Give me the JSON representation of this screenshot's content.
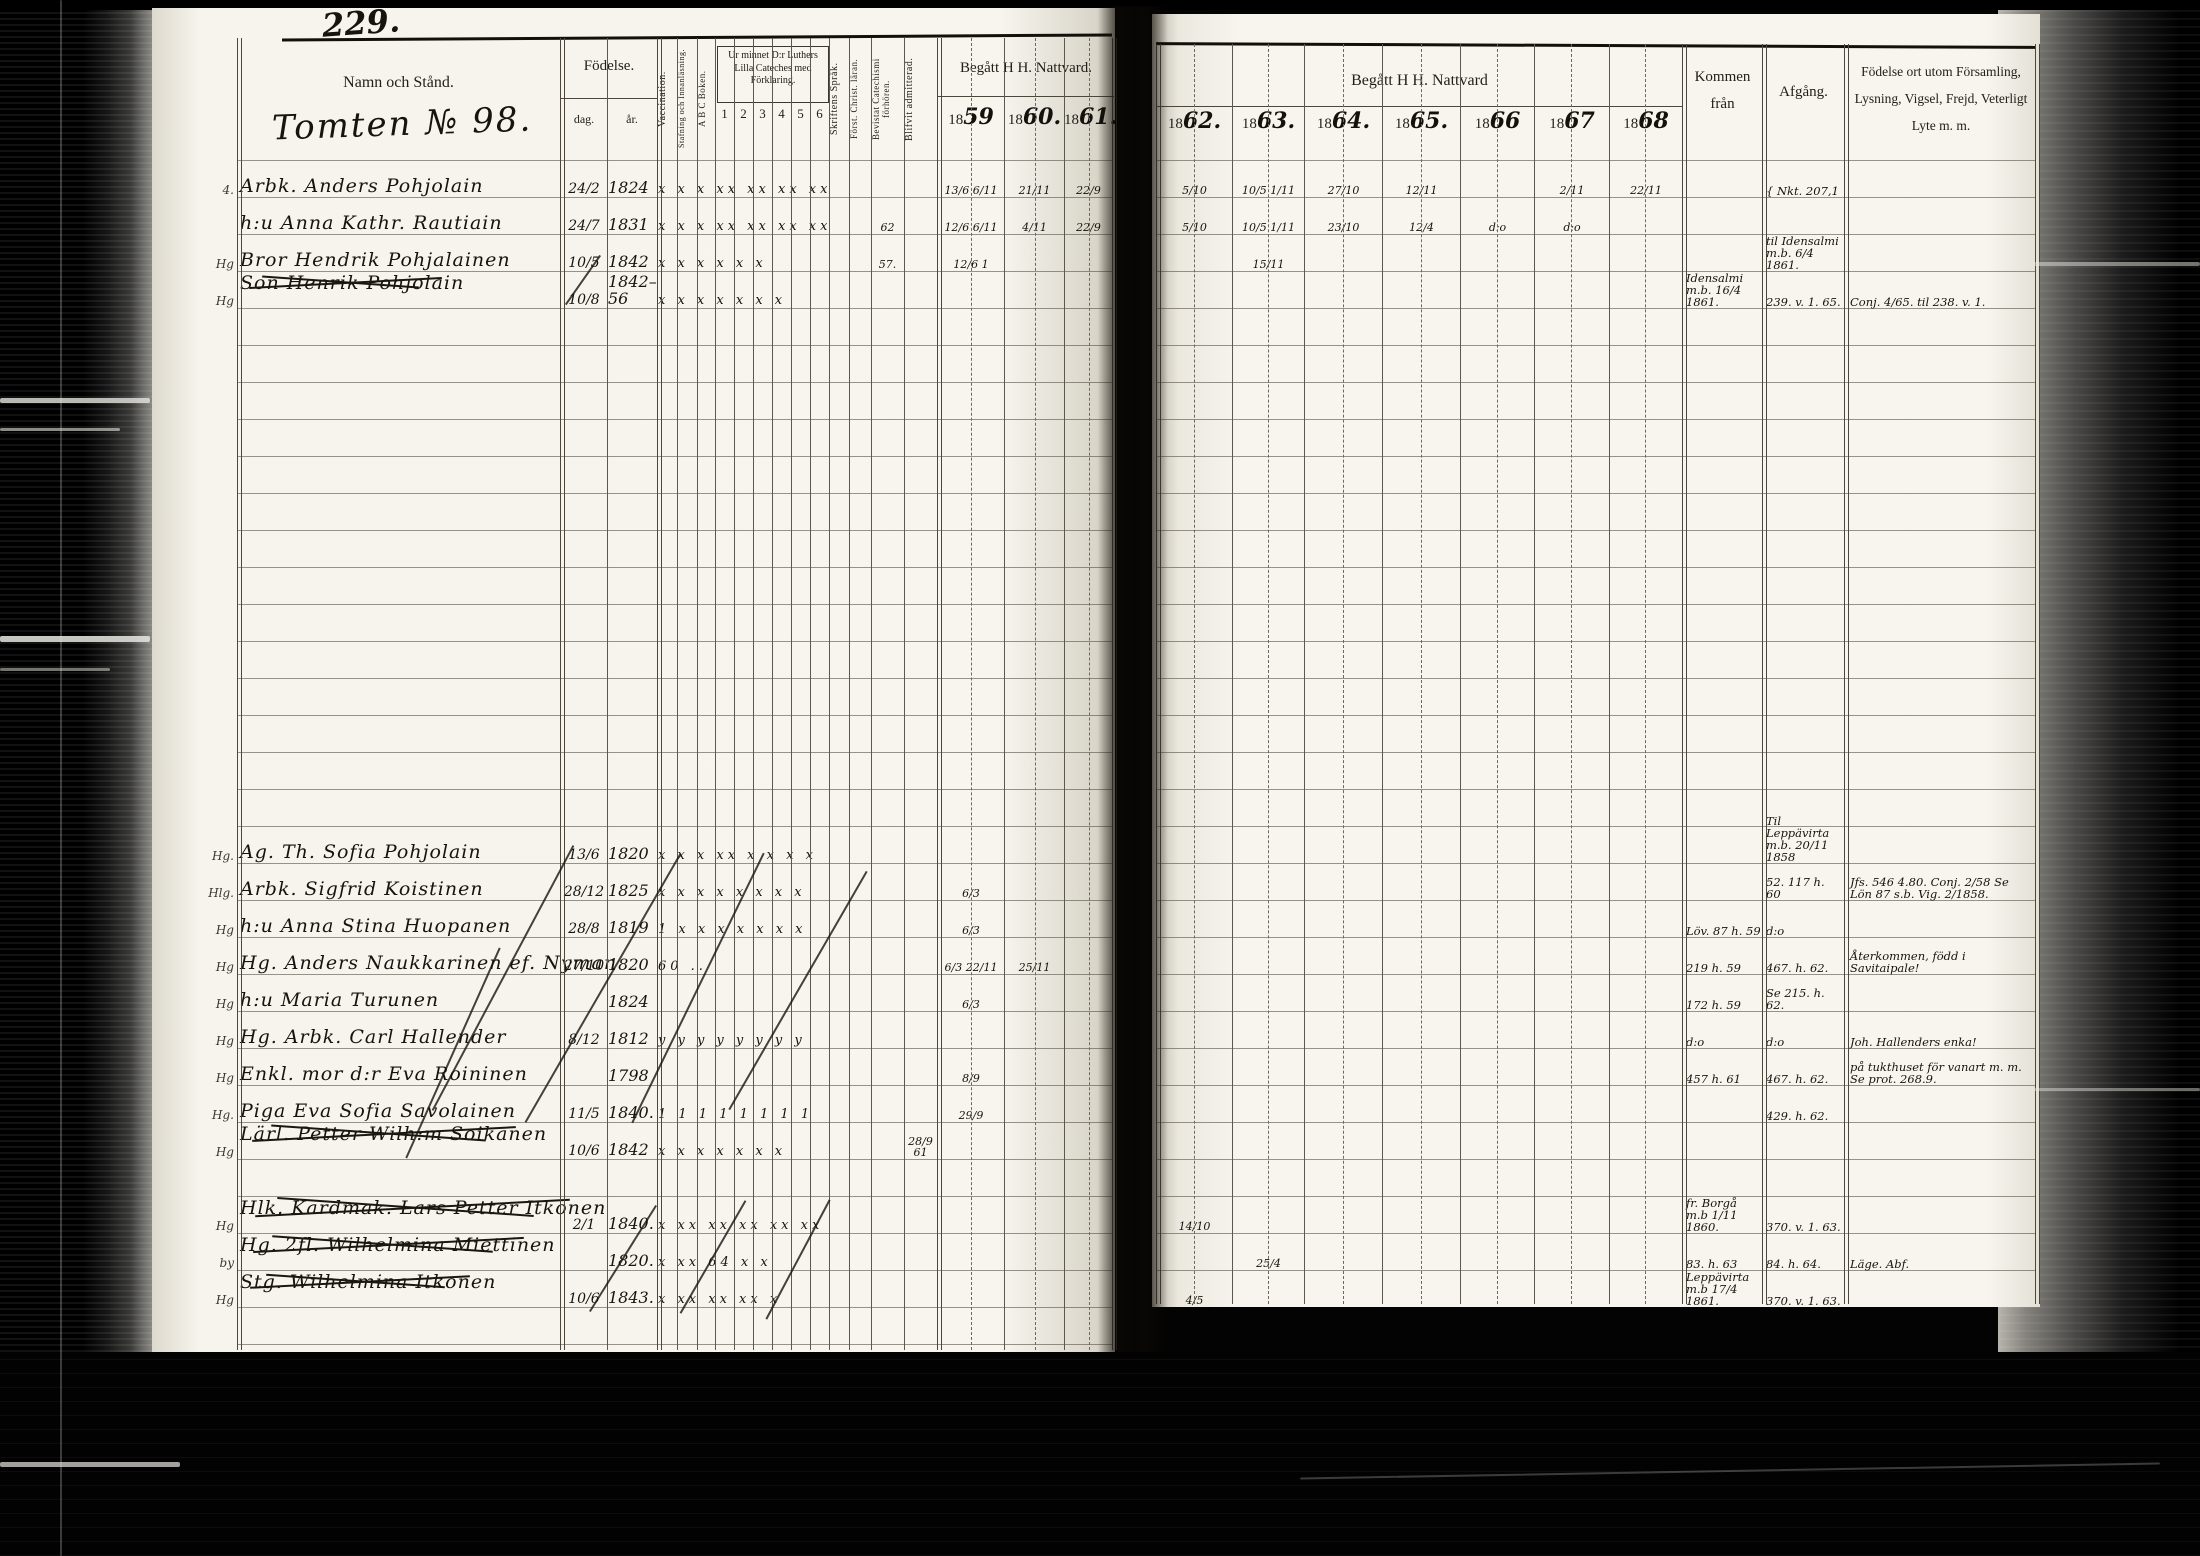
{
  "film": {
    "page_number": "229."
  },
  "left_page": {
    "title_handwritten": "Tomten № 98.",
    "headers": {
      "name": "Namn och Stånd.",
      "birth": "Födelse.",
      "birth_day": "dag.",
      "birth_year": "år.",
      "vaccination": "Vaccination.",
      "spelling": "Stafning och Innanläsning.",
      "abc": "A B C Boken.",
      "catechism_group": "Ur minnet D:r Luthers Lilla Cateches med Förklaring.",
      "catechism_cols": [
        "1",
        "2",
        "3",
        "4",
        "5",
        "6"
      ],
      "scripture": "Skriftens Språk.",
      "doctrine": "Först. Christ. läran.",
      "exams": "Bevistat Catechismi förhören.",
      "admitted": "Blifvit admitterad.",
      "communion_group": "Begått H H. Nattvard.",
      "years": [
        {
          "printed": "18",
          "script": "59"
        },
        {
          "printed": "18",
          "script": "60."
        },
        {
          "printed": "18",
          "script": "61."
        }
      ]
    }
  },
  "right_page": {
    "headers": {
      "communion_group": "Begått H H. Nattvard",
      "years": [
        {
          "printed": "18",
          "script": "62."
        },
        {
          "printed": "18",
          "script": "63."
        },
        {
          "printed": "18",
          "script": "64."
        },
        {
          "printed": "18",
          "script": "65."
        },
        {
          "printed": "18",
          "script": "66"
        },
        {
          "printed": "18",
          "script": "67"
        },
        {
          "printed": "18",
          "script": "68"
        }
      ],
      "come_from": "Kommen från",
      "departure": "Afgång.",
      "notes": "Födelse ort utom Församling, Lysning, Vigsel, Frejd, Veterligt Lyte m. m."
    }
  },
  "rows": [
    {
      "margin": "4.",
      "name": "Arbk. Anders Pohjolain",
      "struck": false,
      "dag": "24/2",
      "ar": "1824",
      "marks": "x x x xx xx xx xx xx",
      "exam": "",
      "admit": "",
      "y1859": "13/6 6/11",
      "y1860": "21/11",
      "y1861": "22/9",
      "y1862": "5/10",
      "y1863": "10/5 1/11",
      "y1864": "27/10",
      "y1865": "12/11",
      "y1866": "",
      "y1867": "2/11",
      "y1868": "22/11",
      "kommen": "",
      "afgang": "{ Nkt. 207,1",
      "notes": ""
    },
    {
      "margin": "",
      "name": "h:u Anna Kathr. Rautiain",
      "struck": false,
      "dag": "24/7",
      "ar": "1831",
      "marks": "x x x xx xx xx xx xx",
      "exam": "62",
      "admit": "",
      "y1859": "12/6 6/11",
      "y1860": "4/11",
      "y1861": "22/9",
      "y1862": "5/10",
      "y1863": "10/5 1/11",
      "y1864": "23/10",
      "y1865": "12/4",
      "y1866": "d:o",
      "y1867": "d:o",
      "y1868": "",
      "kommen": "",
      "afgang": "",
      "notes": ""
    },
    {
      "margin": "Hg",
      "name": "Bror Hendrik Pohjalainen",
      "struck": false,
      "dag": "10/5",
      "ar": "1842",
      "marks": "x x x x x x",
      "exam": "57.",
      "admit": "",
      "y1859": "12/6 1",
      "y1860": "",
      "y1861": "",
      "y1862": "",
      "y1863": "15/11",
      "y1864": "",
      "y1865": "",
      "y1866": "",
      "y1867": "",
      "y1868": "",
      "kommen": "",
      "afgang": "til Idensalmi m.b. 6/4 1861.",
      "notes": ""
    },
    {
      "margin": "Hg",
      "name": "Son Henrik Pohjolain",
      "struck": true,
      "dag": "10/8",
      "ar": "1842–56",
      "marks": "x x x x x x x",
      "exam": "",
      "admit": "",
      "y1859": "",
      "y1860": "",
      "y1861": "",
      "y1862": "",
      "y1863": "",
      "y1864": "",
      "y1865": "",
      "y1866": "",
      "y1867": "",
      "y1868": "",
      "kommen": "Idensalmi m.b. 16/4 1861.",
      "afgang": "239. v. 1. 65.",
      "notes": "Conj. 4/65. til 238. v. 1."
    },
    {
      "margin": "Hg.",
      "name": "Ag. Th. Sofia Pohjolain",
      "struck": false,
      "dag": "13/6",
      "ar": "1820",
      "marks": "x x x xx x x x x",
      "exam": "",
      "admit": "",
      "y1859": "",
      "y1860": "",
      "y1861": "",
      "y1862": "",
      "y1863": "",
      "y1864": "",
      "y1865": "",
      "y1866": "",
      "y1867": "",
      "y1868": "",
      "kommen": "",
      "afgang": "Til Leppävirta m.b. 20/11 1858",
      "notes": ""
    },
    {
      "margin": "Hlg.",
      "name": "Arbk. Sigfrid Koistinen",
      "struck": false,
      "dag": "28/12",
      "ar": "1825",
      "marks": "x x x x x x x x",
      "exam": "",
      "admit": "",
      "y1859": "6/3",
      "y1860": "",
      "y1861": "",
      "y1862": "",
      "y1863": "",
      "y1864": "",
      "y1865": "",
      "y1866": "",
      "y1867": "",
      "y1868": "",
      "kommen": "",
      "afgang": "52. 117 h. 60",
      "notes": "Jfs. 546 4.80. Conj. 2/58 Se Lön 87 s.b. Vig. 2/1858."
    },
    {
      "margin": "Hg",
      "name": "h:u Anna Stina Huopanen",
      "struck": false,
      "dag": "28/8",
      "ar": "1819",
      "marks": "1 x x x x x x x",
      "exam": "",
      "admit": "",
      "y1859": "6/3",
      "y1860": "",
      "y1861": "",
      "y1862": "",
      "y1863": "",
      "y1864": "",
      "y1865": "",
      "y1866": "",
      "y1867": "",
      "y1868": "",
      "kommen": "Löv. 87 h. 59",
      "afgang": "d:o",
      "notes": ""
    },
    {
      "margin": "Hg",
      "name": "Hg. Anders Naukkarinen ef. Nyman",
      "struck": false,
      "dag": "27/10",
      "ar": "1820",
      "marks": "60 ..",
      "exam": "",
      "admit": "",
      "y1859": "6/3 22/11",
      "y1860": "25/11",
      "y1861": "",
      "y1862": "",
      "y1863": "",
      "y1864": "",
      "y1865": "",
      "y1866": "",
      "y1867": "",
      "y1868": "",
      "kommen": "219 h. 59",
      "afgang": "467. h. 62.",
      "notes": "Återkommen, född i Savitaipale!"
    },
    {
      "margin": "Hg",
      "name": "h:u Maria Turunen",
      "struck": false,
      "dag": "",
      "ar": "1824",
      "marks": "",
      "exam": "",
      "admit": "",
      "y1859": "6/3",
      "y1860": "",
      "y1861": "",
      "y1862": "",
      "y1863": "",
      "y1864": "",
      "y1865": "",
      "y1866": "",
      "y1867": "",
      "y1868": "",
      "kommen": "172 h. 59",
      "afgang": "Se 215. h. 62.",
      "notes": ""
    },
    {
      "margin": "Hg",
      "name": "Hg. Arbk. Carl Hallender",
      "struck": false,
      "dag": "8/12",
      "ar": "1812",
      "marks": "y y y y y y y y",
      "exam": "",
      "admit": "",
      "y1859": "",
      "y1860": "",
      "y1861": "",
      "y1862": "",
      "y1863": "",
      "y1864": "",
      "y1865": "",
      "y1866": "",
      "y1867": "",
      "y1868": "",
      "kommen": "d:o",
      "afgang": "d:o",
      "notes": "Joh. Hallenders enka!"
    },
    {
      "margin": "Hg",
      "name": "Enkl. mor d:r Eva Roininen",
      "struck": false,
      "dag": "",
      "ar": "1798",
      "marks": "",
      "exam": "",
      "admit": "",
      "y1859": "8/9",
      "y1860": "",
      "y1861": "",
      "y1862": "",
      "y1863": "",
      "y1864": "",
      "y1865": "",
      "y1866": "",
      "y1867": "",
      "y1868": "",
      "kommen": "457 h. 61",
      "afgang": "467. h. 62.",
      "notes": "på tukthuset för vanart m. m. Se prot. 268.9."
    },
    {
      "margin": "Hg.",
      "name": "Piga Eva Sofia Savolainen",
      "struck": false,
      "dag": "11/5",
      "ar": "1840.",
      "marks": "1 1 1 1 1 1 1 1",
      "exam": "",
      "admit": "",
      "y1859": "29/9",
      "y1860": "",
      "y1861": "",
      "y1862": "",
      "y1863": "",
      "y1864": "",
      "y1865": "",
      "y1866": "",
      "y1867": "",
      "y1868": "",
      "kommen": "",
      "afgang": "429. h. 62.",
      "notes": ""
    },
    {
      "margin": "Hg",
      "name": "Lärl. Petter Wilh:m Soikanen",
      "struck": true,
      "dag": "10/6",
      "ar": "1842",
      "marks": "x x x x x x x",
      "exam": "",
      "admit": "28/9 61",
      "y1859": "",
      "y1860": "",
      "y1861": "",
      "y1862": "",
      "y1863": "",
      "y1864": "",
      "y1865": "",
      "y1866": "",
      "y1867": "",
      "y1868": "",
      "kommen": "",
      "afgang": "",
      "notes": ""
    },
    {
      "margin": "Hg",
      "name": "Hlk. Kardmak. Lars Petter Itkonen",
      "struck": true,
      "dag": "2/1",
      "ar": "1840.",
      "marks": "x xx xx xx xx xx",
      "exam": "",
      "admit": "",
      "y1859": "",
      "y1860": "",
      "y1861": "",
      "y1862": "14/10",
      "y1863": "",
      "y1864": "",
      "y1865": "",
      "y1866": "",
      "y1867": "",
      "y1868": "",
      "kommen": "fr. Borgå m.b 1/11 1860.",
      "afgang": "370. v. 1. 63.",
      "notes": ""
    },
    {
      "margin": "by",
      "name": "Hg. 2fl. Wilhelmina Miettinen",
      "struck": true,
      "dag": "",
      "ar": "1820.",
      "marks": "x xx 64 x x",
      "exam": "",
      "admit": "",
      "y1859": "",
      "y1860": "",
      "y1861": "",
      "y1862": "",
      "y1863": "25/4",
      "y1864": "",
      "y1865": "",
      "y1866": "",
      "y1867": "",
      "y1868": "",
      "kommen": "83. h. 63",
      "afgang": "84. h. 64.",
      "notes": "Läge. Abf."
    },
    {
      "margin": "Hg",
      "name": "Stg. Wilhelmina Itkonen",
      "struck": true,
      "dag": "10/6",
      "ar": "1843.",
      "marks": "x xx xx xx x",
      "exam": "",
      "admit": "",
      "y1859": "",
      "y1860": "",
      "y1861": "",
      "y1862": "4/5",
      "y1863": "",
      "y1864": "",
      "y1865": "",
      "y1866": "",
      "y1867": "",
      "y1868": "",
      "kommen": "Leppävirta m.b 17/4 1861.",
      "afgang": "370. v. 1. 63.",
      "notes": ""
    }
  ]
}
